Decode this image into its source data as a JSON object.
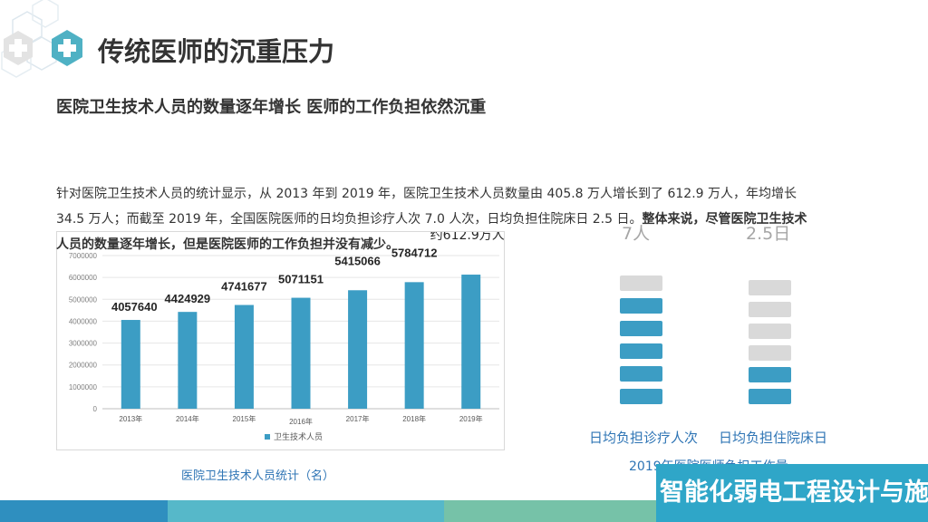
{
  "header": {
    "title": "传统医师的沉重压力",
    "subtitle": "医院卫生技术人员的数量逐年增长 医师的工作负担依然沉重"
  },
  "paragraph": {
    "line1": "针对医院卫生技术人员的统计显示，从 2013 年到 2019 年，医院卫生技术人员数量由 405.8 万人增长到了 612.9 万人，年均增长",
    "line2_plain": "34.5 万人；而截至 2019 年，全国医院医师的日均负担诊疗人次 7.0 人次，日均负担住院床日 2.5 日。",
    "line2_bold": "整体来说，尽管医院卫生技术",
    "line3_bold": "人员的数量逐年增长，但是医院医师的工作负担并没有减少。"
  },
  "chart_data": {
    "type": "bar",
    "categories": [
      "2013年",
      "2014年",
      "2015年",
      "2016年",
      "2017年",
      "2018年",
      "2019年"
    ],
    "series": [
      {
        "name": "卫生技术人员",
        "values": [
          4057640,
          4424929,
          4741677,
          5071151,
          5415066,
          5784712,
          6129000
        ]
      }
    ],
    "data_labels": [
      "4057640",
      "4424929",
      "4741677",
      "5071151",
      "5415066",
      "5784712",
      ""
    ],
    "annotation": "约612.9万人",
    "yticks": [
      "0",
      "1000000",
      "2000000",
      "3000000",
      "4000000",
      "5000000",
      "6000000",
      "7000000"
    ],
    "ylim": [
      0,
      7000000
    ],
    "legend": "bottom",
    "color": "#3c9dc4"
  },
  "chart_caption": "医院卫生技术人员统计（名）",
  "workload": {
    "clinic_value": "7人",
    "bed_value": "2.5日",
    "clinic_label": "日均负担诊疗人次",
    "bed_label": "日均负担住院床日",
    "caption": "2019年医院医师负担工作量",
    "clinic_filled": 5,
    "clinic_total": 6,
    "bed_filled": 2,
    "bed_total": 6,
    "filled_color": "#3c9dc4",
    "empty_color": "#d9d9d9"
  },
  "banner": {
    "text": "智能化弱电工程设计与施工"
  },
  "colors": {
    "accent": "#3c9dc4",
    "footer_dark": "#2f8fbf",
    "footer_mid": "#56b8c9",
    "footer_light": "#76c2a8"
  }
}
